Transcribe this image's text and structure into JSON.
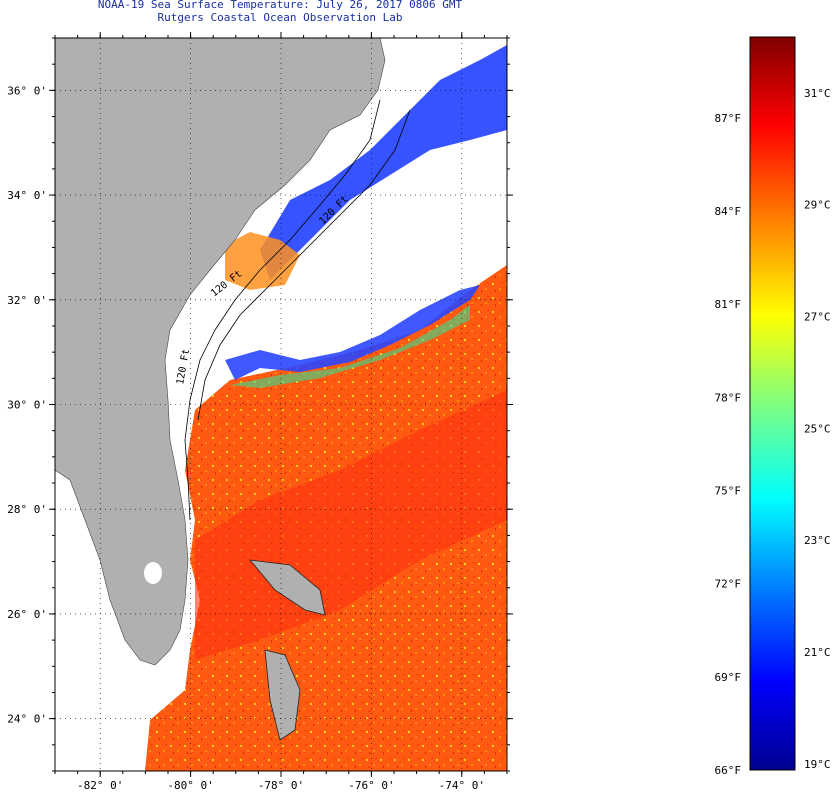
{
  "title": {
    "line1": "NOAA-19 Sea Surface Temperature:  July 26, 2017 0806 GMT",
    "line2": "Rutgers Coastal Ocean Observation Lab"
  },
  "map": {
    "lat_labels": [
      "36° 0'",
      "34° 0'",
      "32° 0'",
      "30° 0'",
      "28° 0'",
      "26° 0'",
      "24° 0'"
    ],
    "lat_values": [
      36,
      34,
      32,
      30,
      28,
      26,
      24
    ],
    "lon_labels": [
      "-82° 0'",
      "-80° 0'",
      "-78° 0'",
      "-76° 0'",
      "-74° 0'"
    ],
    "lon_values": [
      -82,
      -80,
      -78,
      -76,
      -74
    ],
    "lat_range": [
      23,
      37
    ],
    "lon_range": [
      -83,
      -73
    ],
    "contour_labels": [
      "120 Ft",
      "120 Ft",
      "120 Ft"
    ],
    "colors": {
      "land": "#b0b0b0",
      "no_data": "#ffffff",
      "warm": "#ff4a10",
      "cool": "#1e3cff",
      "contour": "#000000",
      "grid": "#000000"
    }
  },
  "colorbar": {
    "fahrenheit_labels": [
      "87°F",
      "84°F",
      "81°F",
      "78°F",
      "75°F",
      "72°F",
      "69°F",
      "66°F"
    ],
    "fahrenheit_values": [
      87,
      84,
      81,
      78,
      75,
      72,
      69,
      66
    ],
    "celsius_labels": [
      "31°C",
      "29°C",
      "27°C",
      "25°C",
      "23°C",
      "21°C",
      "19°C"
    ],
    "celsius_values": [
      31,
      29,
      27,
      25,
      23,
      21,
      19
    ],
    "range_f": [
      66,
      89.6
    ],
    "colors": [
      "#00008f",
      "#0000ff",
      "#0080ff",
      "#00ffff",
      "#80ff80",
      "#ffff00",
      "#ff8000",
      "#ff0000",
      "#800000"
    ]
  }
}
